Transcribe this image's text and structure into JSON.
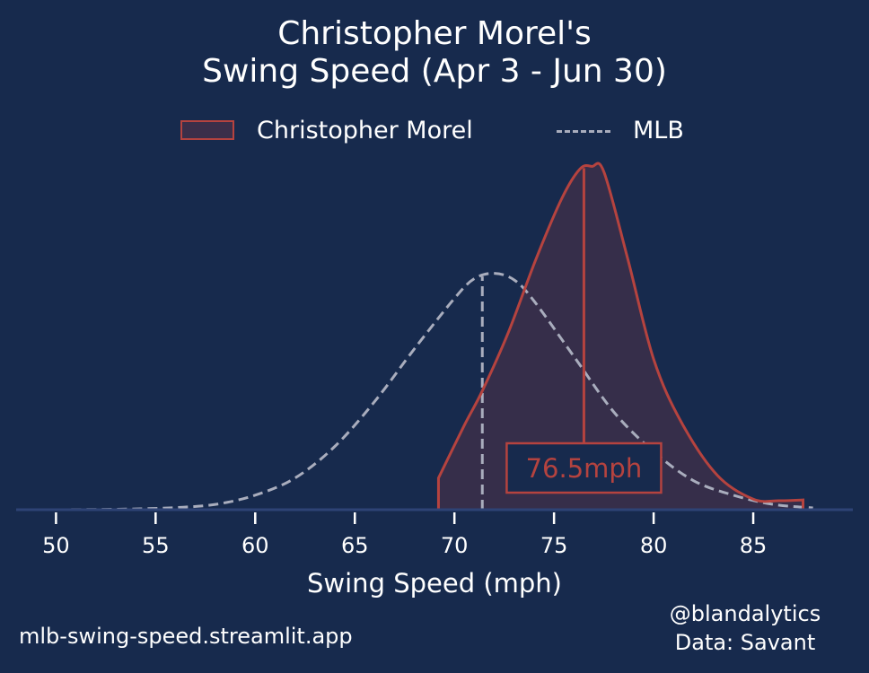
{
  "chart_data": {
    "type": "area",
    "title_line1": "Christopher Morel's",
    "title_line2": "Swing Speed (Apr 3 - Jun 30)",
    "xlabel": "Swing Speed (mph)",
    "ylabel": "",
    "xlim": [
      48,
      90
    ],
    "ylim": [
      0,
      0.14
    ],
    "xticks": [
      50,
      55,
      60,
      65,
      70,
      75,
      80,
      85
    ],
    "grid": false,
    "legend_position": "top-center",
    "series": [
      {
        "name": "Christopher Morel",
        "style": "filled-solid",
        "color": "#b5433f",
        "median": 76.5,
        "median_label": "76.5mph",
        "x": [
          69.2,
          70.5,
          71.4,
          72.7,
          74.1,
          75.4,
          76.3,
          76.9,
          77.5,
          78.7,
          80.0,
          81.4,
          83.2,
          85.0,
          86.3,
          87.5
        ],
        "y": [
          0.012,
          0.032,
          0.045,
          0.067,
          0.095,
          0.118,
          0.129,
          0.13,
          0.128,
          0.095,
          0.057,
          0.033,
          0.013,
          0.004,
          0.0034,
          0.0037
        ]
      },
      {
        "name": "MLB",
        "style": "dashed",
        "color": "#a9adbd",
        "median": 71.4,
        "x": [
          50,
          52,
          54,
          56,
          58,
          60,
          62,
          64,
          66,
          68,
          70,
          71,
          72,
          73,
          74,
          76,
          78,
          80,
          82,
          84,
          86,
          88
        ],
        "y": [
          0.0,
          0.0001,
          0.0003,
          0.0008,
          0.002,
          0.0055,
          0.012,
          0.024,
          0.041,
          0.061,
          0.08,
          0.0875,
          0.0895,
          0.087,
          0.079,
          0.058,
          0.037,
          0.022,
          0.011,
          0.0055,
          0.002,
          0.0007
        ]
      }
    ]
  },
  "footer": {
    "site": "mlb-swing-speed.streamlit.app",
    "credit": "@blandalytics",
    "source": "Data: Savant"
  }
}
